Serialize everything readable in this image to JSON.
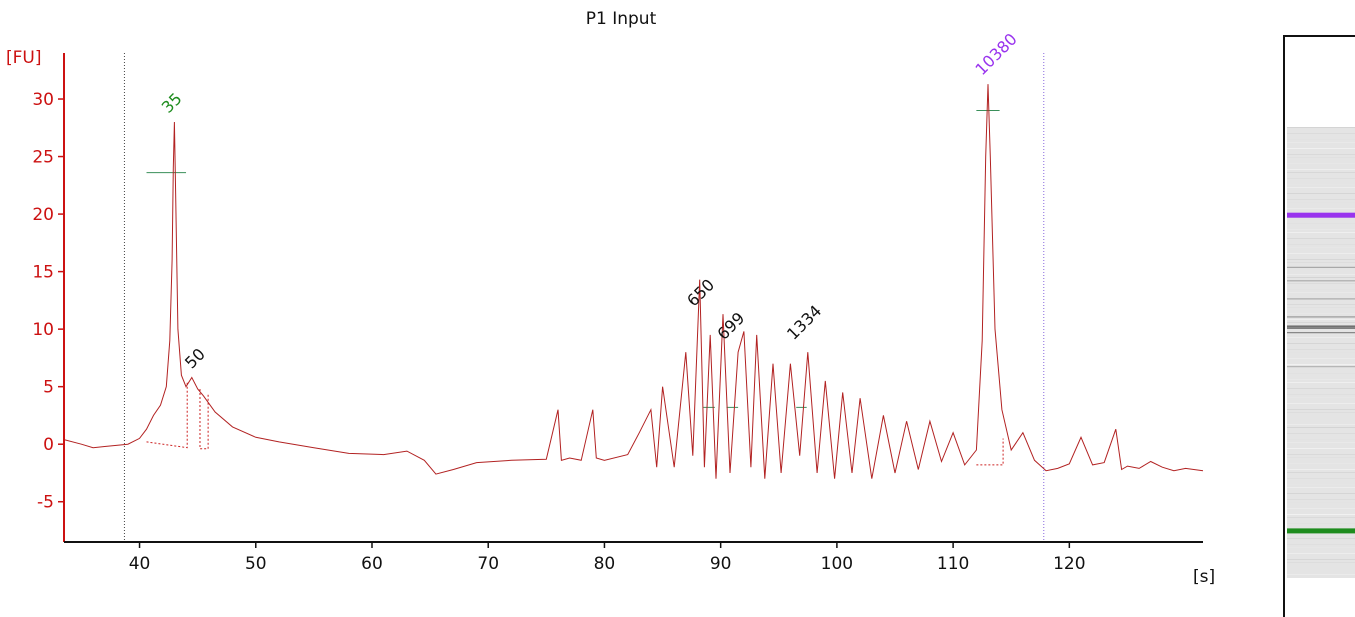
{
  "chart_data": {
    "type": "line",
    "title": "P1 Input",
    "xlabel": "[s]",
    "ylabel": "[FU]",
    "xlim": [
      33.5,
      131.5
    ],
    "ylim": [
      -8.5,
      34
    ],
    "x_ticks": [
      40,
      50,
      60,
      70,
      80,
      90,
      100,
      110,
      120
    ],
    "y_ticks": [
      30,
      25,
      20,
      15,
      10,
      5,
      0,
      -5
    ],
    "markers": [
      38.7,
      117.8
    ],
    "series": [
      {
        "color": "#b22222",
        "x": [
          33.5,
          35,
          36,
          37,
          38,
          39,
          40,
          40.6,
          41.2,
          41.8,
          42.3,
          42.6,
          42.8,
          42.9,
          43.0,
          43.1,
          43.3,
          43.6,
          44.0,
          44.5,
          45.0,
          45.5,
          46.5,
          48,
          50,
          52,
          55,
          58,
          61,
          63,
          64.5,
          65.5,
          67,
          69,
          72,
          75,
          76,
          76.3,
          77,
          78,
          79,
          79.3,
          80,
          82,
          83,
          84,
          84.5,
          85,
          86,
          87,
          87.6,
          88.2,
          88.6,
          89.1,
          89.6,
          90.2,
          90.8,
          91.5,
          92.0,
          92.6,
          93.1,
          93.8,
          94.5,
          95.2,
          96.0,
          96.8,
          97.5,
          98.3,
          99.0,
          99.8,
          100.5,
          101.3,
          102.0,
          103.0,
          104.0,
          105.0,
          106.0,
          107.0,
          108.0,
          109.0,
          110.0,
          111.0,
          112.0,
          112.5,
          112.8,
          113.0,
          113.2,
          113.6,
          114.2,
          115,
          116,
          117,
          118,
          119,
          120,
          121,
          122,
          123,
          124,
          124.5,
          125,
          126,
          127,
          128,
          129,
          130,
          131.5
        ],
        "y": [
          0.4,
          0,
          -0.3,
          -0.2,
          -0.1,
          0,
          0.5,
          1.3,
          2.5,
          3.4,
          5,
          9,
          16,
          24,
          28,
          22,
          10,
          6,
          5,
          5.8,
          4.8,
          4.2,
          2.8,
          1.5,
          0.6,
          0.2,
          -0.3,
          -0.8,
          -0.9,
          -0.6,
          -1.4,
          -2.6,
          -2.2,
          -1.6,
          -1.4,
          -1.3,
          3,
          -1.4,
          -1.2,
          -1.4,
          3,
          -1.2,
          -1.4,
          -0.9,
          1,
          3,
          -2,
          5,
          -2,
          8,
          -1,
          14.3,
          -2,
          9.5,
          -3,
          11.3,
          -2.5,
          8,
          9.8,
          -2,
          9.5,
          -3,
          7,
          -2.5,
          7,
          -1,
          8,
          -2.5,
          5.5,
          -3,
          4.5,
          -2.5,
          4,
          -3,
          2.5,
          -2.5,
          2,
          -2.2,
          2,
          -1.5,
          1,
          -1.8,
          -0.5,
          9,
          25,
          31.3,
          25,
          10,
          3,
          -0.5,
          1,
          -1.4,
          -2.3,
          -2.1,
          -1.7,
          0.6,
          -1.8,
          -1.6,
          1.3,
          -2.2,
          -1.9,
          -2.1,
          -1.5,
          -2,
          -2.3,
          -2.1,
          -2.3
        ]
      }
    ],
    "peak_labels": [
      {
        "x": 43.0,
        "y": 28.0,
        "text": "35",
        "color": "#1e8c1e"
      },
      {
        "x": 45.0,
        "y": 5.8,
        "text": "50",
        "color": "#111111"
      },
      {
        "x": 88.2,
        "y": 11.2,
        "text": "650",
        "color": "#111111"
      },
      {
        "x": 90.8,
        "y": 8.3,
        "text": "699",
        "color": "#111111"
      },
      {
        "x": 96.8,
        "y": 8.3,
        "text": "1334",
        "color": "#111111"
      },
      {
        "x": 113.0,
        "y": 31.3,
        "text": "10380",
        "color": "#9933ee"
      }
    ],
    "peak_bars": [
      {
        "x0": 40.6,
        "x1": 44.0,
        "y": 23.6
      },
      {
        "x0": 112.0,
        "x1": 114.0,
        "y": 29.0
      },
      {
        "x0": 88.5,
        "x1": 89.5,
        "y": 3.2
      },
      {
        "x0": 90.5,
        "x1": 91.5,
        "y": 3.2
      },
      {
        "x0": 96.5,
        "x1": 97.4,
        "y": 3.2
      }
    ]
  },
  "gel": {
    "upper_marker_color": "#9933ee",
    "lower_marker_color": "#1e8c1e",
    "bands": [
      {
        "position": 0.19,
        "color": "#9933ee",
        "weight": 5
      },
      {
        "position": 0.31,
        "color": "#9a9a9a",
        "weight": 1
      },
      {
        "position": 0.34,
        "color": "#a0a0a0",
        "weight": 1
      },
      {
        "position": 0.38,
        "color": "#9a9a9a",
        "weight": 1
      },
      {
        "position": 0.42,
        "color": "#8a8a8a",
        "weight": 1
      },
      {
        "position": 0.44,
        "color": "#707070",
        "weight": 2
      },
      {
        "position": 0.445,
        "color": "#555555",
        "weight": 1
      },
      {
        "position": 0.455,
        "color": "#707070",
        "weight": 1
      },
      {
        "position": 0.53,
        "color": "#b5b5b5",
        "weight": 1
      },
      {
        "position": 0.89,
        "color": "#1e8c1e",
        "weight": 5
      }
    ]
  }
}
